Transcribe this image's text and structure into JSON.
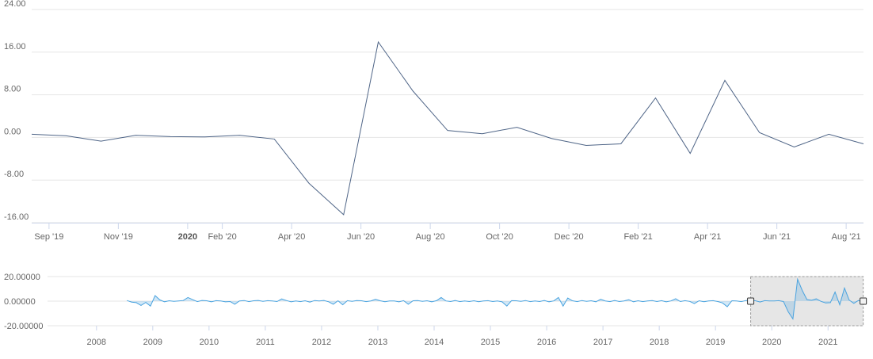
{
  "chart_data": [
    {
      "type": "line",
      "x": [
        "2019-08",
        "2019-09",
        "2019-10",
        "2019-11",
        "2019-12",
        "2020-01",
        "2020-02",
        "2020-03",
        "2020-04",
        "2020-05",
        "2020-06",
        "2020-07",
        "2020-08",
        "2020-09",
        "2020-10",
        "2020-11",
        "2020-12",
        "2021-01",
        "2021-02",
        "2021-03",
        "2021-04",
        "2021-05",
        "2021-06",
        "2021-07",
        "2021-08"
      ],
      "series": [
        {
          "color": "#4f6587",
          "values": [
            0.6,
            0.3,
            -0.7,
            0.4,
            0.15,
            0.1,
            0.4,
            -0.3,
            -8.6,
            -14.5,
            17.9,
            8.7,
            1.3,
            0.7,
            1.9,
            -0.2,
            -1.5,
            -1.2,
            7.4,
            -3.0,
            10.7,
            0.9,
            -1.8,
            0.6,
            -1.2
          ]
        }
      ],
      "ylim": [
        -16,
        24
      ],
      "yticks": [
        {
          "value": -16,
          "label": "-16.00"
        },
        {
          "value": -8,
          "label": "-8.00"
        },
        {
          "value": 0,
          "label": "0.00"
        },
        {
          "value": 8,
          "label": "8.00"
        },
        {
          "value": 16,
          "label": "16.00"
        },
        {
          "value": 24,
          "label": "24.00"
        }
      ],
      "xticks": [
        {
          "value": "2019-09",
          "label": "Sep '19"
        },
        {
          "value": "2019-11",
          "label": "Nov '19"
        },
        {
          "value": "2020-01",
          "label": "2020",
          "bold": true
        },
        {
          "value": "2020-02",
          "label": "Feb '20"
        },
        {
          "value": "2020-04",
          "label": "Apr '20"
        },
        {
          "value": "2020-06",
          "label": "Jun '20"
        },
        {
          "value": "2020-08",
          "label": "Aug '20"
        },
        {
          "value": "2020-10",
          "label": "Oct '20"
        },
        {
          "value": "2020-12",
          "label": "Dec '20"
        },
        {
          "value": "2021-02",
          "label": "Feb '21"
        },
        {
          "value": "2021-04",
          "label": "Apr '21"
        },
        {
          "value": "2021-06",
          "label": "Jun '21"
        },
        {
          "value": "2021-08",
          "label": "Aug '21"
        }
      ],
      "grid": true
    },
    {
      "type": "navigator",
      "start": "2008-07",
      "series": [
        {
          "color": "#4aa3df",
          "values": [
            0.5,
            -0.8,
            -1.2,
            -3.5,
            -1.0,
            -4.0,
            4.5,
            1.0,
            -0.5,
            0.3,
            -0.2,
            0.1,
            0.5,
            3.0,
            1.2,
            -0.4,
            0.6,
            0.3,
            -0.5,
            0.4,
            0.2,
            -0.6,
            -0.3,
            -2.5,
            0.2,
            0.5,
            -0.4,
            0.3,
            0.6,
            -0.2,
            0.4,
            0.1,
            -0.3,
            1.8,
            0.5,
            -0.6,
            0.2,
            -0.4,
            0.3,
            -0.8,
            0.5,
            0.2,
            0.6,
            -0.5,
            -2.5,
            0.3,
            -3.0,
            0.4,
            -0.2,
            0.5,
            0.3,
            -0.4,
            0.2,
            1.5,
            0.3,
            -0.5,
            0.2,
            0.1,
            -0.6,
            0.4,
            -2.5,
            0.3,
            0.5,
            -0.2,
            0.3,
            -0.5,
            0.4,
            3.0,
            0.2,
            -0.3,
            0.5,
            -0.4,
            0.2,
            -0.3,
            0.3,
            -0.5,
            0.2,
            0.4,
            -0.3,
            0.2,
            -0.6,
            -4.0,
            0.4,
            0.3,
            -0.2,
            0.5,
            -0.4,
            0.2,
            -0.3,
            0.6,
            -0.5,
            0.2,
            3.0,
            -4.0,
            2.5,
            0.3,
            -0.4,
            0.5,
            -0.2,
            0.3,
            -0.5,
            1.5,
            0.2,
            -0.4,
            0.6,
            -0.3,
            0.2,
            1.2,
            -0.5,
            0.3,
            -0.4,
            0.2,
            0.5,
            -0.3,
            0.4,
            -0.6,
            0.2,
            2.0,
            -0.3,
            0.4,
            -0.2,
            -2.0,
            0.3,
            -0.5,
            0.2,
            0.4,
            -0.3,
            -1.5,
            -4.5,
            0.3,
            0.2,
            -0.4,
            0.5
          ]
        }
      ],
      "xlim": [
        2007.13,
        2021.63
      ],
      "xticks": [
        2008,
        2009,
        2010,
        2011,
        2012,
        2013,
        2014,
        2015,
        2016,
        2017,
        2018,
        2019,
        2020,
        2021
      ],
      "ylim": [
        -20,
        20
      ],
      "yticks": [
        {
          "value": -20,
          "label": "-20.00000"
        },
        {
          "value": 0,
          "label": "0.00000"
        },
        {
          "value": 20,
          "label": "20.00000"
        }
      ],
      "selection_color": "#e6e6e6"
    }
  ]
}
